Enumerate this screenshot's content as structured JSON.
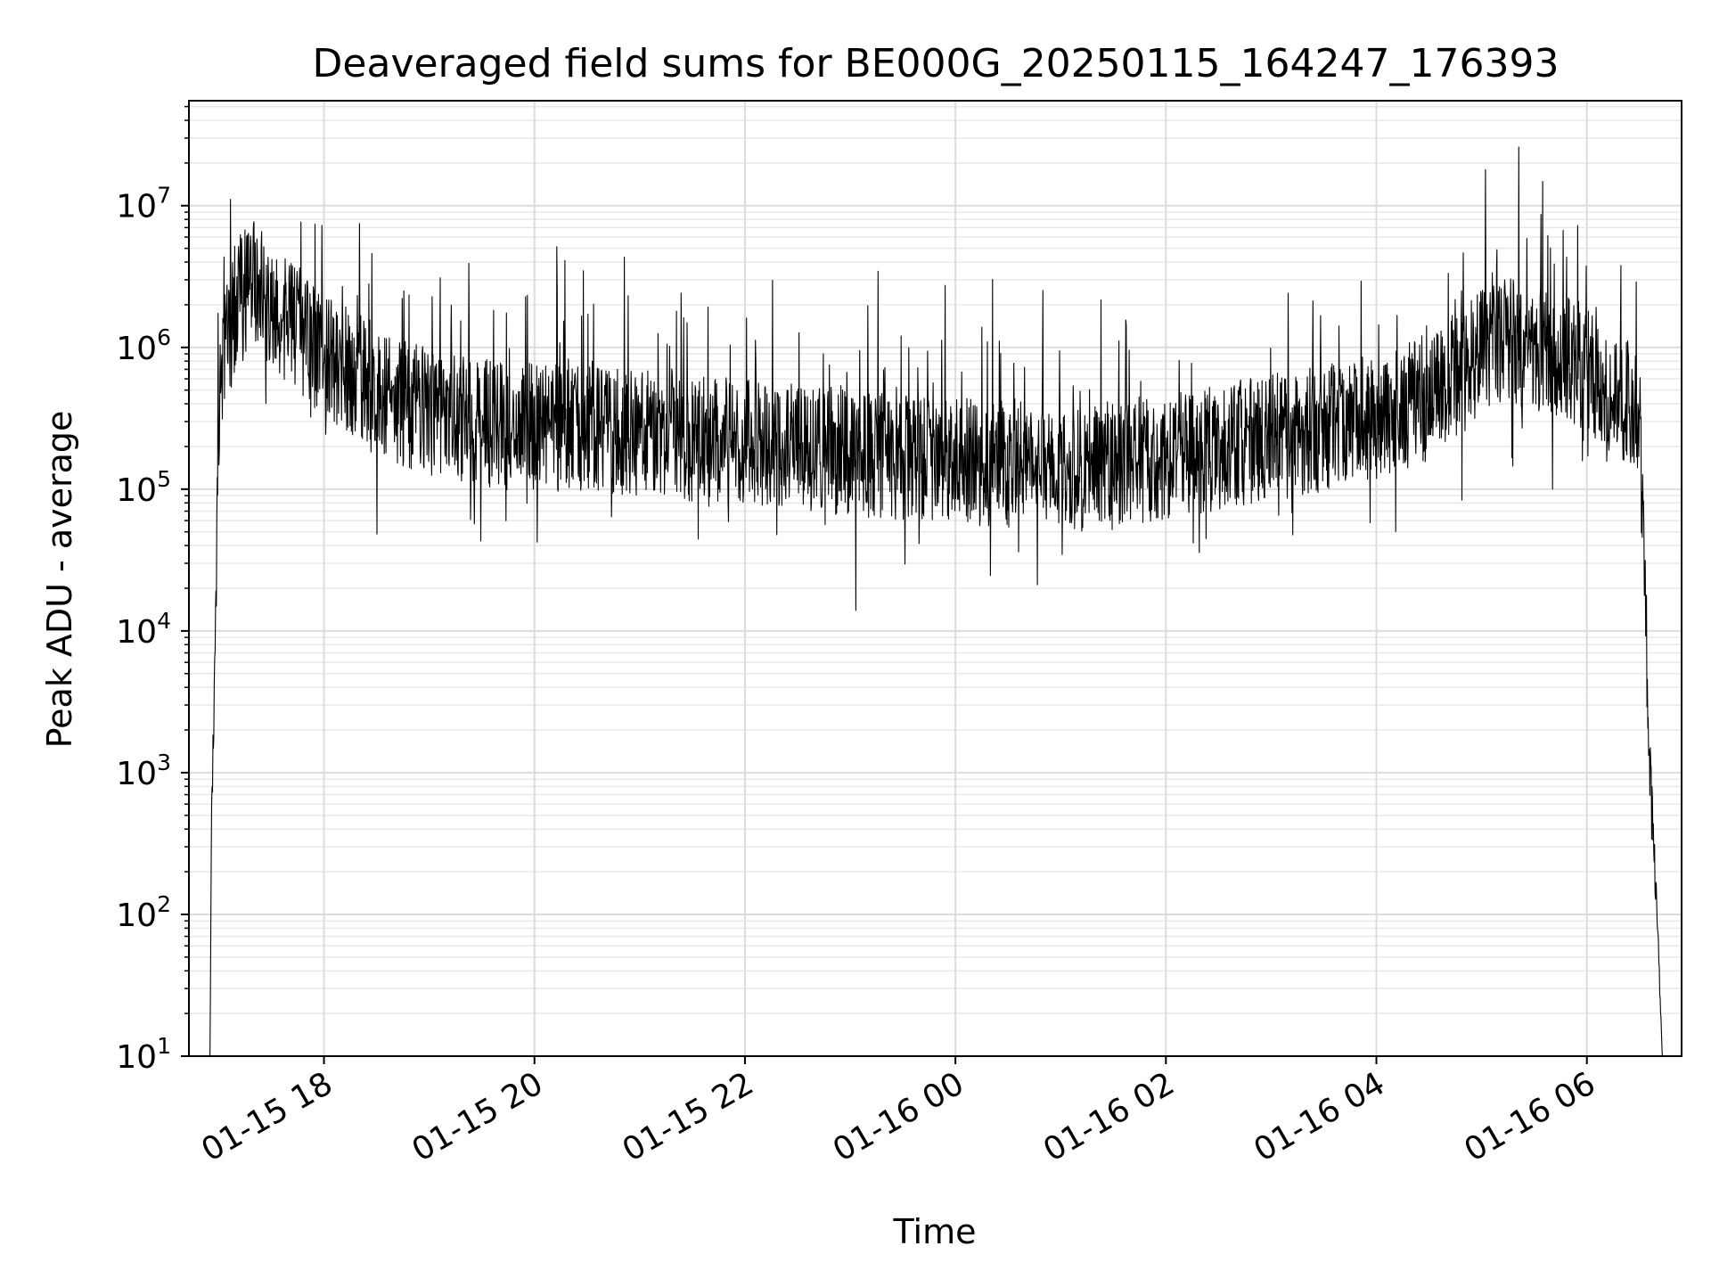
{
  "chart_data": {
    "type": "line",
    "title": "Deaveraged field sums for BE000G_20250115_164247_176393",
    "xlabel": "Time",
    "ylabel": "Peak ADU - average",
    "yscale": "log",
    "ylim": [
      10,
      55000000
    ],
    "xlim": [
      "2025-01-15 16:43",
      "2025-01-16 06:54"
    ],
    "grid": "major and minor",
    "line_color": "#000000",
    "x_ticks": [
      {
        "value": "2025-01-15 18:00",
        "label": "01-15 18"
      },
      {
        "value": "2025-01-15 20:00",
        "label": "01-15 20"
      },
      {
        "value": "2025-01-15 22:00",
        "label": "01-15 22"
      },
      {
        "value": "2025-01-16 00:00",
        "label": "01-16 00"
      },
      {
        "value": "2025-01-16 02:00",
        "label": "01-16 02"
      },
      {
        "value": "2025-01-16 04:00",
        "label": "01-16 04"
      },
      {
        "value": "2025-01-16 06:00",
        "label": "01-16 06"
      }
    ],
    "y_ticks": [
      {
        "value": 10,
        "base": "10",
        "exp": "1"
      },
      {
        "value": 100,
        "base": "10",
        "exp": "2"
      },
      {
        "value": 1000,
        "base": "10",
        "exp": "3"
      },
      {
        "value": 10000,
        "base": "10",
        "exp": "4"
      },
      {
        "value": 100000,
        "base": "10",
        "exp": "5"
      },
      {
        "value": 1000000,
        "base": "10",
        "exp": "6"
      },
      {
        "value": 10000000,
        "base": "10",
        "exp": "7"
      }
    ],
    "series": [
      {
        "x": [
          "2025-01-15 16:55",
          "2025-01-15 16:56",
          "2025-01-15 16:58",
          "2025-01-15 17:00",
          "2025-01-15 17:01",
          "2025-01-15 17:04",
          "2025-01-15 17:07",
          "2025-01-15 17:10",
          "2025-01-15 17:15",
          "2025-01-15 17:20",
          "2025-01-15 17:25",
          "2025-01-15 17:30",
          "2025-01-15 17:35",
          "2025-01-15 17:40",
          "2025-01-15 17:50",
          "2025-01-15 18:00",
          "2025-01-15 18:15",
          "2025-01-15 18:30",
          "2025-01-15 18:45",
          "2025-01-15 19:00",
          "2025-01-15 19:30",
          "2025-01-15 20:00",
          "2025-01-15 20:30",
          "2025-01-15 21:00",
          "2025-01-15 21:30",
          "2025-01-15 22:00",
          "2025-01-15 22:30",
          "2025-01-15 23:00",
          "2025-01-15 23:30",
          "2025-01-16 00:00",
          "2025-01-16 00:30",
          "2025-01-16 01:00",
          "2025-01-16 01:30",
          "2025-01-16 02:00",
          "2025-01-16 02:30",
          "2025-01-16 03:00",
          "2025-01-16 03:30",
          "2025-01-16 04:00",
          "2025-01-16 04:30",
          "2025-01-16 05:00",
          "2025-01-16 05:15",
          "2025-01-16 05:30",
          "2025-01-16 05:45",
          "2025-01-16 06:00",
          "2025-01-16 06:15",
          "2025-01-16 06:25",
          "2025-01-16 06:30",
          "2025-01-16 06:33",
          "2025-01-16 06:36",
          "2025-01-16 06:40",
          "2025-01-16 06:43"
        ],
        "y": [
          10,
          700,
          10000,
          300000,
          800000,
          1000000,
          1500000,
          2000000,
          2500000,
          3000000,
          2500000,
          2000000,
          1800000,
          1500000,
          1200000,
          900000,
          700000,
          500000,
          400000,
          350000,
          300000,
          280000,
          260000,
          250000,
          230000,
          220000,
          200000,
          180000,
          170000,
          160000,
          150000,
          140000,
          150000,
          170000,
          200000,
          230000,
          270000,
          320000,
          450000,
          900000,
          1100000,
          1000000,
          900000,
          700000,
          500000,
          400000,
          300000,
          20000,
          1000,
          100,
          10
        ]
      }
    ]
  }
}
